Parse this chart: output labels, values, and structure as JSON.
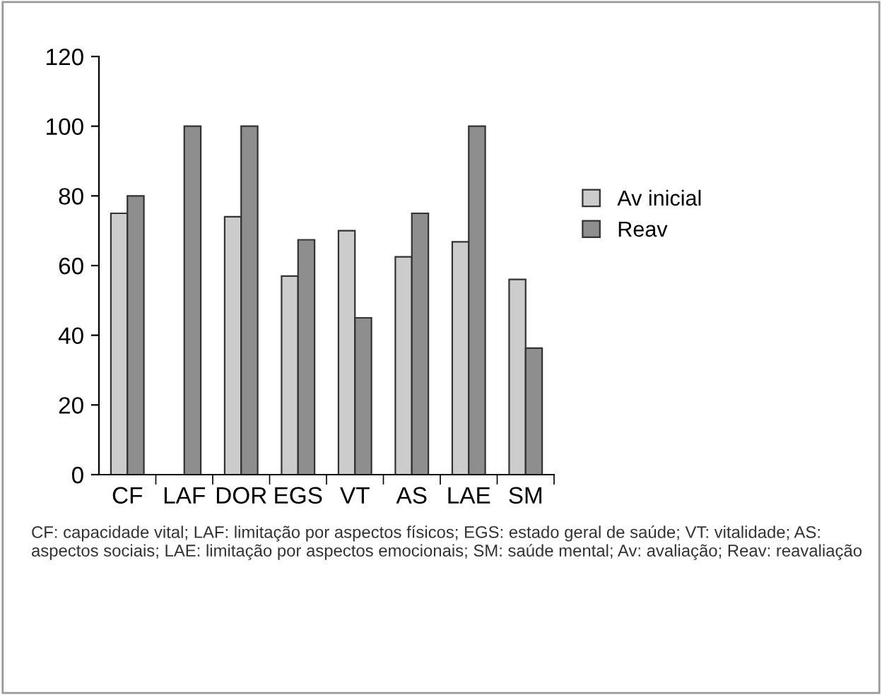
{
  "chart_data": {
    "type": "bar",
    "categories": [
      "CF",
      "LAF",
      "DOR",
      "EGS",
      "VT",
      "AS",
      "LAE",
      "SM"
    ],
    "series": [
      {
        "name": "Av inicial",
        "color": "#cccccc",
        "values": [
          75,
          null,
          74,
          57,
          70,
          62.5,
          66.8,
          56
        ]
      },
      {
        "name": "Reav",
        "color": "#8e8e8e",
        "values": [
          80,
          100,
          100,
          67.4,
          45,
          75,
          100,
          36.3
        ]
      }
    ],
    "ylim": [
      0,
      120
    ],
    "yticks": [
      0,
      20,
      40,
      60,
      80,
      100,
      120
    ],
    "grid": false,
    "legend": "right",
    "annotations": [
      "CF: capacidade vital; LAF: limitação por aspectos físicos; EGS: estado geral de saúde; VT: vitalidade; AS: aspectos sociais; LAE: limitação por aspectos emocionais; SM: saúde mental; Av: avaliação; Reav: reavaliação"
    ]
  }
}
